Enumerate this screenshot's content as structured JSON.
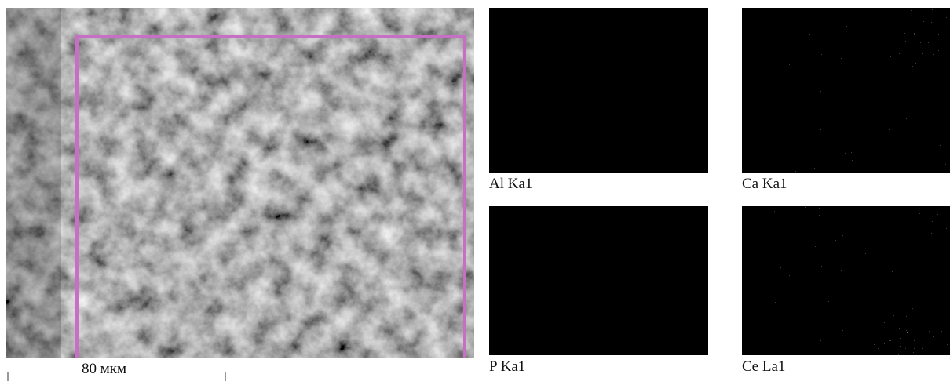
{
  "scale_bar": {
    "label": "80 мкм"
  },
  "maps": [
    {
      "label": "Al Ka1"
    },
    {
      "label": "Ca Ka1"
    },
    {
      "label": "P Ka1"
    },
    {
      "label": "Ce La1"
    }
  ]
}
